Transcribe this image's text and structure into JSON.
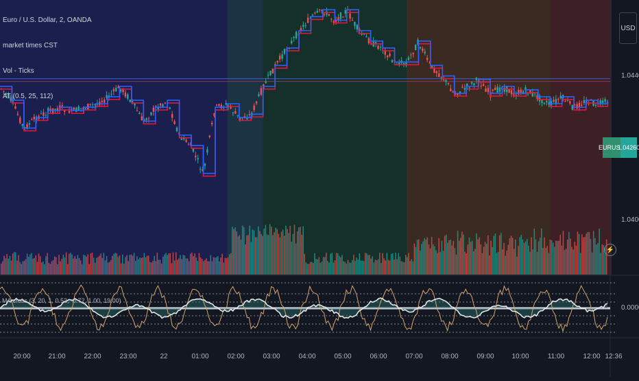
{
  "chart_data": {
    "type": "line",
    "symbol_header": "Euro / U.S. Dollar, 2, OANDA",
    "legend_items": [
      "market times CST",
      "Vol - Ticks",
      "AT (0.5, 25, 112)"
    ],
    "sub_indicator_label": "MA cross (3, 20, 1, 0.52, -0.72, 1.00, 19.00)",
    "currency": "USD",
    "price_ticks": [
      "1.04400",
      "1.04000",
      "0.00000"
    ],
    "last_price_badge": {
      "symbol": "EURUSD",
      "price": "1.04260"
    },
    "time_ticks": [
      "20:00",
      "21:00",
      "22:00",
      "23:00",
      "22",
      "01:00",
      "02:00",
      "03:00",
      "04:00",
      "05:00",
      "06:00",
      "07:00",
      "08:00",
      "09:00",
      "10:00",
      "11:00",
      "12:00",
      "12:36"
    ],
    "session_colors": [
      "#1a1f4d",
      "#1c3344",
      "#15302a",
      "#3a2a22",
      "#3d1f26"
    ],
    "session_boundaries_time": [
      "20:00",
      "02:00",
      "03:00",
      "07:00",
      "11:00",
      "12:36"
    ],
    "y_range": [
      1.0384,
      1.0455
    ],
    "price_path_time": [
      "19:40",
      "20:00",
      "20:20",
      "20:40",
      "21:00",
      "21:20",
      "21:40",
      "22:00",
      "22:20",
      "22:40",
      "23:00",
      "23:20",
      "23:40",
      "00:00",
      "00:20",
      "00:40",
      "01:00",
      "01:20",
      "01:40",
      "02:00",
      "02:20",
      "02:40",
      "03:00",
      "03:20",
      "03:40",
      "04:00",
      "04:20",
      "04:40",
      "05:00",
      "05:20",
      "05:40",
      "06:00",
      "06:20",
      "06:40",
      "07:00",
      "07:20",
      "07:40",
      "08:00",
      "08:20",
      "08:40",
      "09:00",
      "09:20",
      "09:40",
      "10:00",
      "10:20",
      "10:40",
      "11:00",
      "11:20",
      "11:40",
      "12:00",
      "12:20",
      "12:36"
    ],
    "price_path": [
      1.043,
      1.0426,
      1.0418,
      1.0421,
      1.0423,
      1.0424,
      1.0423,
      1.0424,
      1.0425,
      1.0427,
      1.043,
      1.0426,
      1.042,
      1.0424,
      1.0426,
      1.0416,
      1.0413,
      1.0405,
      1.0424,
      1.0425,
      1.0421,
      1.0422,
      1.043,
      1.0436,
      1.0441,
      1.0446,
      1.045,
      1.0452,
      1.0449,
      1.0452,
      1.0446,
      1.0443,
      1.0441,
      1.0437,
      1.0437,
      1.0443,
      1.0436,
      1.0433,
      1.0428,
      1.043,
      1.0432,
      1.0428,
      1.043,
      1.0428,
      1.0429,
      1.0427,
      1.0425,
      1.0427,
      1.0424,
      1.0426,
      1.0425,
      1.0426
    ],
    "volume_scale_note": "relative",
    "oscillator_range": [
      -1,
      1
    ]
  }
}
